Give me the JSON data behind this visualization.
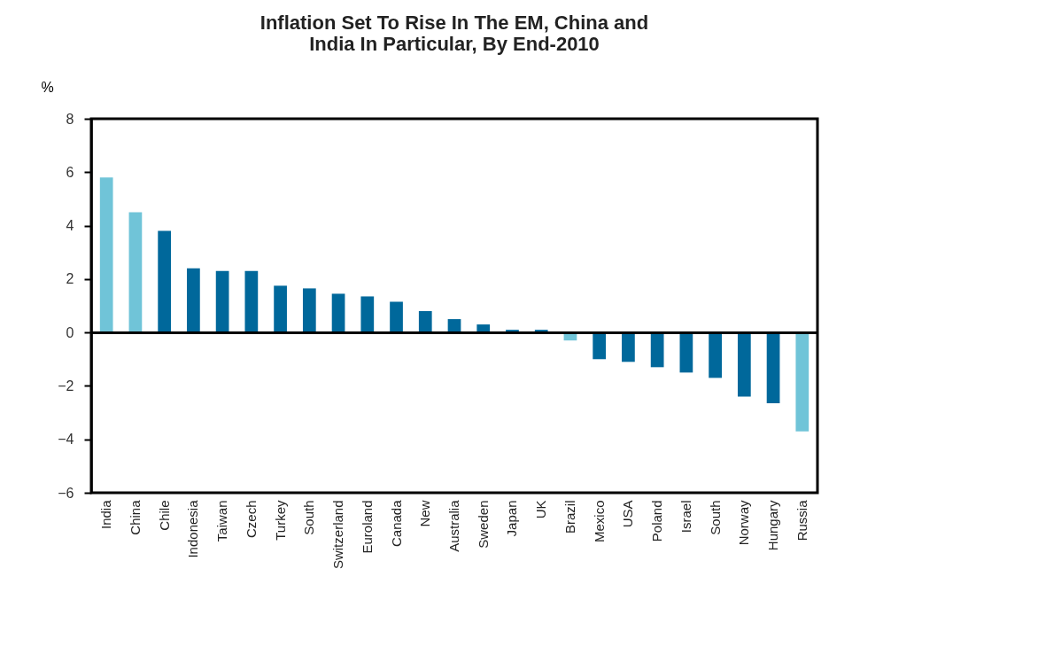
{
  "chart_data": {
    "type": "bar",
    "title": [
      "Inflation Set To Rise In The EM, China and",
      "India In Particular, By End-2010"
    ],
    "ylabel": "%",
    "categories": [
      "India",
      "China",
      "Chile",
      "Indonesia",
      "Taiwan",
      "Czech",
      "Turkey",
      "South",
      "Switzerland",
      "Euroland",
      "Canada",
      "New",
      "Australia",
      "Sweden",
      "Japan",
      "UK",
      "Brazil",
      "Mexico",
      "USA",
      "Poland",
      "Israel",
      "South",
      "Norway",
      "Hungary",
      "Russia"
    ],
    "values": [
      5.8,
      4.5,
      3.8,
      2.4,
      2.3,
      2.3,
      1.75,
      1.65,
      1.45,
      1.35,
      1.15,
      0.8,
      0.5,
      0.3,
      0.1,
      0.1,
      -0.3,
      -1.0,
      -1.1,
      -1.3,
      -1.5,
      -1.7,
      -2.4,
      -2.65,
      -3.7
    ],
    "colors": [
      "#70c4d8",
      "#70c4d8",
      "#00689b",
      "#00689b",
      "#00689b",
      "#00689b",
      "#00689b",
      "#00689b",
      "#00689b",
      "#00689b",
      "#00689b",
      "#00689b",
      "#00689b",
      "#00689b",
      "#00689b",
      "#00689b",
      "#70c4d8",
      "#00689b",
      "#00689b",
      "#00689b",
      "#00689b",
      "#00689b",
      "#00689b",
      "#00689b",
      "#70c4d8"
    ],
    "ylim": [
      -6,
      8
    ],
    "yticks": [
      -6,
      -4,
      -2,
      0,
      2,
      4,
      6,
      8
    ]
  }
}
